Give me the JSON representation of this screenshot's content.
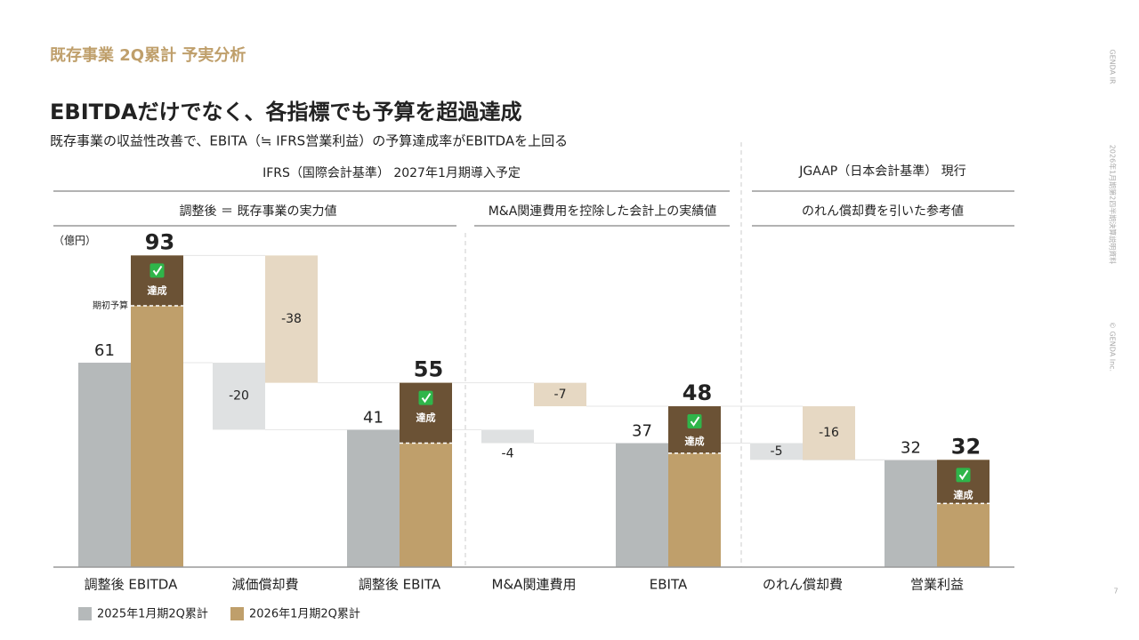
{
  "page": {
    "section_title": "既存事業 2Q累計 予実分析",
    "headline": "EBITDAだけでなく、各指標でも予算を超過達成",
    "subtitle": "既存事業の収益性改善で、EBITA（≒ IFRS営業利益）の予算達成率がEBITDAを上回る",
    "side_brand": "GENDA IR",
    "side_doc": "2026年1月期第2四半期決算説明資料",
    "side_copyright": "© GENDA Inc.",
    "page_number": "7",
    "group_ifrs": "IFRS（国際会計基準） 2027年1月期導入予定",
    "group_jgaap": "JGAAP（日本会計基準） 現行",
    "sub_adjusted": "調整後 ＝ 既存事業の実力値",
    "sub_ma": "M&A関連費用を控除した会計上の実績値",
    "sub_goodwill": "のれん償却費を引いた参考値"
  },
  "chart_data": {
    "type": "waterfall",
    "unit_label": "（億円）",
    "categories": [
      "調整後 EBITDA",
      "減価償却費",
      "調整後 EBITA",
      "M&A関連費用",
      "EBITA",
      "のれん償却費",
      "営業利益"
    ],
    "measure": [
      "total",
      "relative",
      "total",
      "relative",
      "total",
      "relative",
      "total"
    ],
    "series": [
      {
        "name": "2025年1月期2Q累計",
        "color": "#b5b9ba",
        "delta_color": "#dfe1e2",
        "values": [
          61,
          -20,
          41,
          -4,
          37,
          -5,
          32
        ]
      },
      {
        "name": "2026年1月期2Q累計",
        "color": "#bf9f6b",
        "delta_color": "#e6d8c3",
        "values": [
          93,
          -38,
          55,
          -7,
          48,
          -16,
          32
        ]
      }
    ],
    "budget": {
      "label": "期初予算",
      "achieved_label": "達成",
      "color": "#6b5235",
      "values": [
        78,
        null,
        37,
        null,
        34,
        null,
        19
      ]
    },
    "ylim": [
      0,
      100
    ]
  }
}
